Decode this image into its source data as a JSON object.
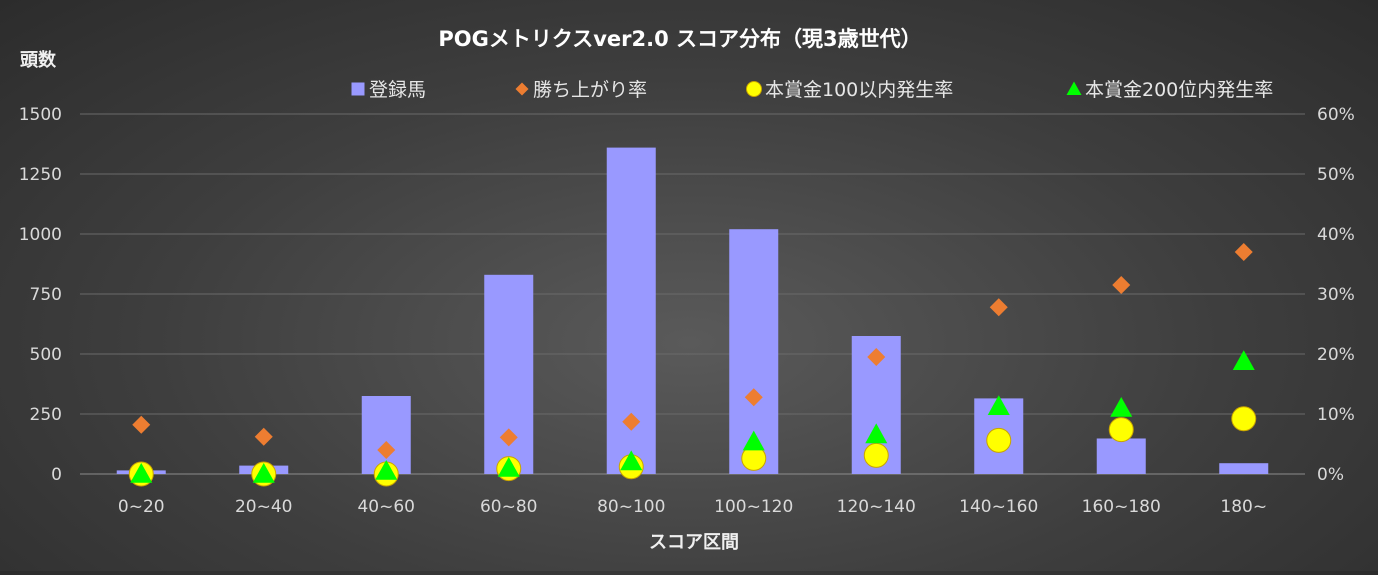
{
  "chart_data": {
    "type": "bar",
    "title": "POGメトリクスver2.0 スコア分布（現3歳世代）",
    "xlabel": "スコア区間",
    "ylabel": "頭数",
    "categories": [
      "0~20",
      "20~40",
      "40~60",
      "60~80",
      "80~100",
      "100~120",
      "120~140",
      "140~160",
      "160~180",
      "180~"
    ],
    "ylim": [
      0,
      1500
    ],
    "yticks": [
      "0",
      "250",
      "500",
      "750",
      "1000",
      "1250",
      "1500"
    ],
    "y2lim": [
      0,
      0.6
    ],
    "y2ticks": [
      "0%",
      "10%",
      "20%",
      "30%",
      "40%",
      "50%",
      "60%"
    ],
    "grid": true,
    "legend_position": "top",
    "series": [
      {
        "name": "登録馬",
        "type": "bar",
        "axis": "left",
        "marker": "square",
        "color": "#9999ff",
        "values": [
          15,
          35,
          325,
          830,
          1360,
          1020,
          575,
          315,
          148,
          45
        ]
      },
      {
        "name": "勝ち上がり率",
        "type": "scatter",
        "axis": "right",
        "marker": "diamond",
        "color": "#ed7d31",
        "values": [
          0.082,
          0.062,
          0.04,
          0.061,
          0.087,
          0.128,
          0.195,
          0.278,
          0.315,
          0.37
        ]
      },
      {
        "name": "本賞金100以内発生率",
        "type": "scatter",
        "axis": "right",
        "marker": "circle",
        "color": "#ffff00",
        "values": [
          0.0,
          0.0,
          0.0,
          0.009,
          0.012,
          0.026,
          0.031,
          0.056,
          0.074,
          0.092
        ]
      },
      {
        "name": "本賞金200位内発生率",
        "type": "scatter",
        "axis": "right",
        "marker": "triangle",
        "color": "#00ff00",
        "values": [
          0.0,
          0.0,
          0.005,
          0.01,
          0.021,
          0.054,
          0.066,
          0.113,
          0.11,
          0.188
        ]
      }
    ]
  }
}
